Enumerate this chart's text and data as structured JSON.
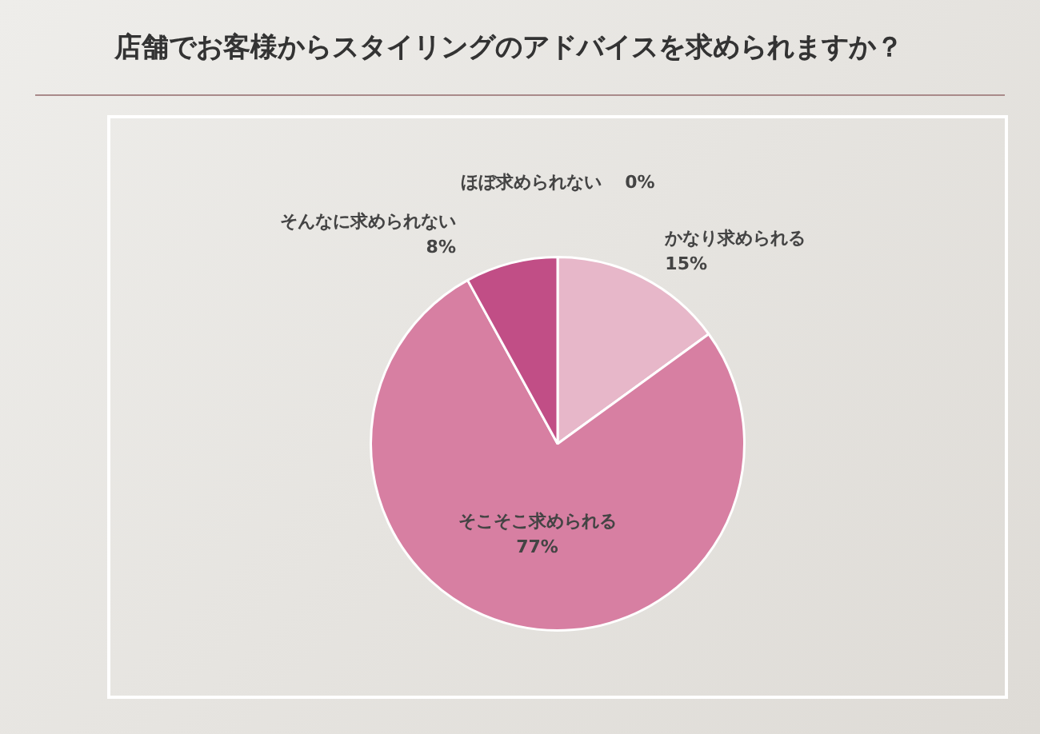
{
  "chart_data": {
    "type": "pie",
    "title": "店舗でお客様からスタイリングのアドバイスを求められますか？",
    "categories": [
      "かなり求められる",
      "そこそこ求められる",
      "そんなに求められない",
      "ほぼ求められない"
    ],
    "values": [
      15,
      77,
      8,
      0
    ],
    "value_labels": [
      "15%",
      "77%",
      "8%",
      "0%"
    ],
    "colors": [
      "#e7b7c9",
      "#d77fa2",
      "#c14e86",
      "#b03a74"
    ],
    "legend": false
  }
}
